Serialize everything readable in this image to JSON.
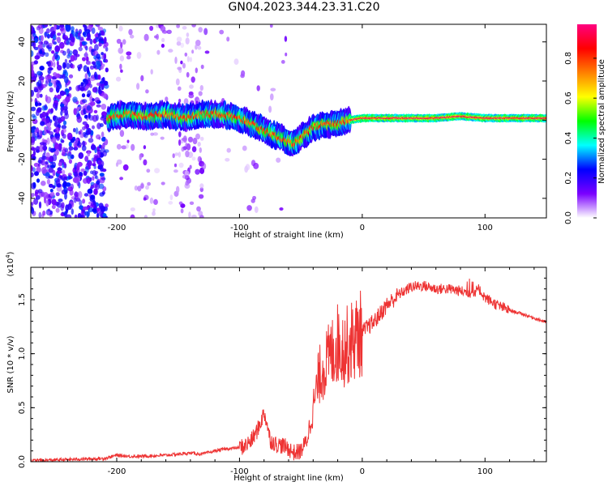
{
  "title": "GN04.2023.344.23.31.C20",
  "colorbar": {
    "label": "Normalized spectral amplitude",
    "ticks": [
      "0.0",
      "0.2",
      "0.4",
      "0.6",
      "0.8"
    ],
    "stops": [
      "#ffffff",
      "#7a00ff",
      "#0000ff",
      "#00ffff",
      "#00ff00",
      "#ffff00",
      "#ff8000",
      "#ff0000",
      "#ff0080"
    ]
  },
  "chart_data": [
    {
      "type": "heatmap",
      "xlabel": "Height of straight line (km)",
      "ylabel": "Frequency (Hz)",
      "xlim": [
        -270,
        150
      ],
      "ylim": [
        -50,
        49
      ],
      "xticks": [
        "-200",
        "-100",
        "0",
        "100"
      ],
      "xtick_values": [
        -200,
        -100,
        0,
        100
      ],
      "yticks": [
        "40",
        "20",
        "0",
        "-20",
        "-40"
      ],
      "ytick_values": [
        40,
        20,
        0,
        -20,
        -40
      ],
      "signal_track": {
        "x": [
          -205,
          -190,
          -175,
          -160,
          -145,
          -130,
          -115,
          -100,
          -90,
          -80,
          -70,
          -60,
          -55,
          -50,
          -40,
          -30,
          -20,
          -10,
          0,
          20,
          40,
          60,
          80,
          100,
          120,
          150
        ],
        "y": [
          2,
          3,
          2,
          3,
          1,
          3,
          3,
          1,
          -2,
          -5,
          -8,
          -11,
          -12,
          -9,
          -4,
          -2,
          -2,
          0,
          1,
          1,
          1,
          1,
          2,
          1,
          1,
          1
        ]
      }
    },
    {
      "type": "line",
      "xlabel": "Height of straight line (km)",
      "ylabel": "SNR (10 * v/v)",
      "scale_label": "(x10",
      "scale_exponent": "4",
      "color": "#ee3333",
      "xlim": [
        -270,
        150
      ],
      "ylim": [
        0,
        1.8
      ],
      "xticks": [
        "-200",
        "-100",
        "0",
        "100"
      ],
      "xtick_values": [
        -200,
        -100,
        0,
        100
      ],
      "yticks": [
        "0.0",
        "0.5",
        "1.0",
        "1.5"
      ],
      "ytick_values": [
        0,
        0.5,
        1.0,
        1.5
      ],
      "series": [
        {
          "x": [
            -270,
            -240,
            -210,
            -200,
            -190,
            -180,
            -160,
            -150,
            -140,
            -130,
            -120,
            -110,
            -100,
            -95,
            -90,
            -85,
            -80,
            -78,
            -75,
            -70,
            -65,
            -60,
            -55,
            -50,
            -45,
            -40,
            -35,
            -30,
            -25,
            -20,
            -15,
            -10,
            -5,
            0,
            5,
            10,
            20,
            30,
            40,
            50,
            60,
            70,
            80,
            90,
            95,
            100,
            110,
            120,
            130,
            140,
            150
          ],
          "y": [
            0.01,
            0.02,
            0.03,
            0.06,
            0.05,
            0.05,
            0.06,
            0.07,
            0.08,
            0.07,
            0.1,
            0.12,
            0.13,
            0.15,
            0.2,
            0.3,
            0.45,
            0.38,
            0.2,
            0.16,
            0.15,
            0.12,
            0.08,
            0.1,
            0.2,
            0.5,
            0.8,
            0.9,
            1.0,
            1.1,
            1.05,
            1.1,
            1.15,
            1.2,
            1.25,
            1.3,
            1.45,
            1.55,
            1.62,
            1.63,
            1.6,
            1.6,
            1.58,
            1.56,
            1.6,
            1.52,
            1.45,
            1.4,
            1.37,
            1.33,
            1.29
          ]
        }
      ]
    }
  ]
}
